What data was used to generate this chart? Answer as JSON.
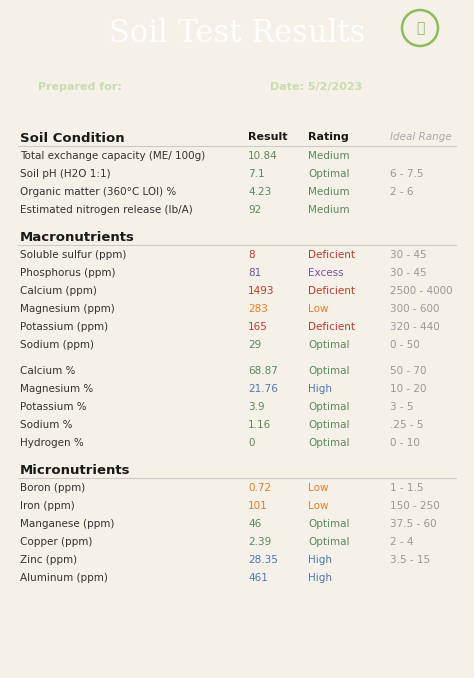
{
  "title": "Soil Test Results",
  "prepared_for_label": "Prepared for:",
  "date_label": "Date: 5/2/2023",
  "header_bg": "#2d5a3d",
  "body_bg": "#f5f0e8",
  "title_color": "#ffffff",
  "subtitle_color": "#c8ddb0",
  "icon_color": "#8fbc5a",
  "sections": [
    {
      "name": "Soil Condition",
      "rows": [
        {
          "label": "Total exchange capacity (ME/ 100g)",
          "result": "10.84",
          "rating": "Medium",
          "ideal": "-"
        },
        {
          "label": "Soil pH (H2O 1:1)",
          "result": "7.1",
          "rating": "Optimal",
          "ideal": "6 - 7.5"
        },
        {
          "label": "Organic matter (360°C LOI) %",
          "result": "4.23",
          "rating": "Medium",
          "ideal": "2 - 6"
        },
        {
          "label": "Estimated nitrogen release (lb/A)",
          "result": "92",
          "rating": "Medium",
          "ideal": "-"
        }
      ]
    },
    {
      "name": "Macronutrients",
      "rows": [
        {
          "label": "Soluble sulfur (ppm)",
          "result": "8",
          "rating": "Deficient",
          "ideal": "30 - 45"
        },
        {
          "label": "Phosphorus (ppm)",
          "result": "81",
          "rating": "Excess",
          "ideal": "30 - 45"
        },
        {
          "label": "Calcium (ppm)",
          "result": "1493",
          "rating": "Deficient",
          "ideal": "2500 - 4000"
        },
        {
          "label": "Magnesium (ppm)",
          "result": "283",
          "rating": "Low",
          "ideal": "300 - 600"
        },
        {
          "label": "Potassium (ppm)",
          "result": "165",
          "rating": "Deficient",
          "ideal": "320 - 440"
        },
        {
          "label": "Sodium (ppm)",
          "result": "29",
          "rating": "Optimal",
          "ideal": "0 - 50"
        },
        {
          "label": "",
          "result": "",
          "rating": "",
          "ideal": ""
        },
        {
          "label": "Calcium %",
          "result": "68.87",
          "rating": "Optimal",
          "ideal": "50 - 70"
        },
        {
          "label": "Magnesium %",
          "result": "21.76",
          "rating": "High",
          "ideal": "10 - 20"
        },
        {
          "label": "Potassium %",
          "result": "3.9",
          "rating": "Optimal",
          "ideal": "3 - 5"
        },
        {
          "label": "Sodium %",
          "result": "1.16",
          "rating": "Optimal",
          "ideal": ".25 - 5"
        },
        {
          "label": "Hydrogen %",
          "result": "0",
          "rating": "Optimal",
          "ideal": "0 - 10"
        }
      ]
    },
    {
      "name": "Micronutrients",
      "rows": [
        {
          "label": "Boron (ppm)",
          "result": "0.72",
          "rating": "Low",
          "ideal": "1 - 1.5"
        },
        {
          "label": "Iron (ppm)",
          "result": "101",
          "rating": "Low",
          "ideal": "150 - 250"
        },
        {
          "label": "Manganese (ppm)",
          "result": "46",
          "rating": "Optimal",
          "ideal": "37.5 - 60"
        },
        {
          "label": "Copper (ppm)",
          "result": "2.39",
          "rating": "Optimal",
          "ideal": "2 - 4"
        },
        {
          "label": "Zinc (ppm)",
          "result": "28.35",
          "rating": "High",
          "ideal": "3.5 - 15"
        },
        {
          "label": "Aluminum (ppm)",
          "result": "461",
          "rating": "High",
          "ideal": "-"
        }
      ]
    }
  ],
  "rating_colors": {
    "Optimal": "#5a8a5a",
    "Medium": "#5a8a5a",
    "Deficient": "#c0392b",
    "Low": "#e67e22",
    "Excess": "#7b4fa6",
    "High": "#4a7ab5"
  }
}
